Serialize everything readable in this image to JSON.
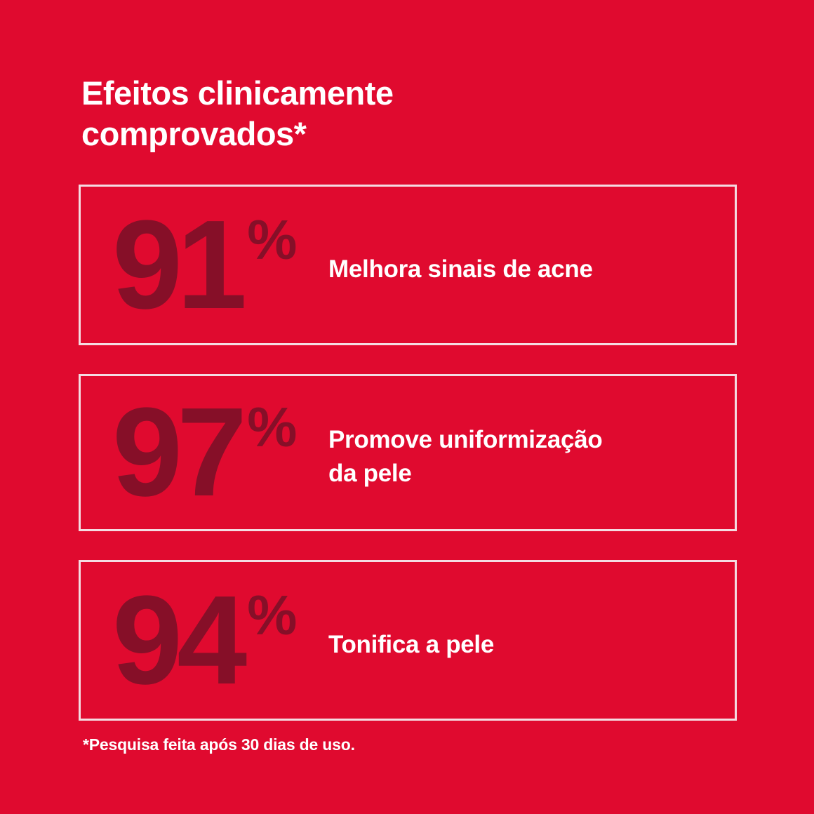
{
  "page": {
    "background_color": "#E00A2F",
    "number_color": "#860F28",
    "border_color": "#F4DCE2",
    "text_color": "#FFFFFF"
  },
  "title": {
    "line1": "Efeitos clinicamente",
    "line2": "comprovados*"
  },
  "stats": [
    {
      "value": "91",
      "percent": "%",
      "label": "Melhora sinais de acne"
    },
    {
      "value": "97",
      "percent": "%",
      "label": "Promove uniformização da pele"
    },
    {
      "value": "94",
      "percent": "%",
      "label": "Tonifica a pele"
    }
  ],
  "footnote": "*Pesquisa feita após 30 dias de uso."
}
